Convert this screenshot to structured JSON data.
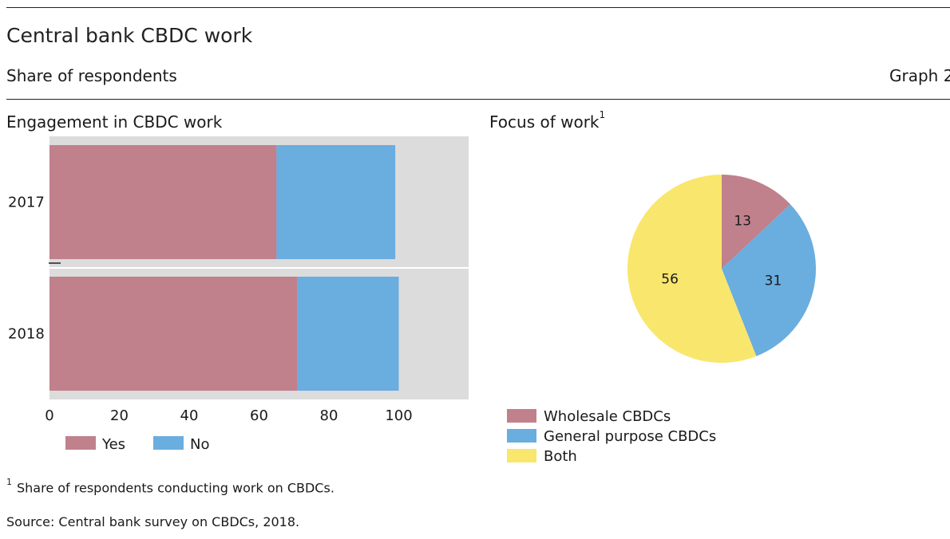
{
  "header": {
    "title": "Central bank CBDC work",
    "subtitle": "Share of respondents",
    "graph_label": "Graph 2"
  },
  "panels": {
    "left_title": "Engagement in CBDC work",
    "right_title": "Focus of work",
    "right_title_note": "1"
  },
  "footer": {
    "footnote_marker": "1",
    "footnote": "Share of respondents conducting work on CBDCs.",
    "source": "Source: Central bank survey on CBDCs, 2018."
  },
  "chart_data": [
    {
      "type": "bar",
      "orientation": "horizontal",
      "stacked": true,
      "title": "Engagement in CBDC work",
      "categories": [
        "2017",
        "2018"
      ],
      "series": [
        {
          "name": "Yes",
          "values": [
            65,
            71
          ],
          "color": "#c0808c"
        },
        {
          "name": "No",
          "values": [
            34,
            29
          ],
          "color": "#6aaddf"
        }
      ],
      "xlim": [
        0,
        120
      ],
      "xticks": [
        "0",
        "20",
        "40",
        "60",
        "80",
        "100"
      ],
      "grid": false,
      "background": "#dcdcdc",
      "legend_position": "bottom"
    },
    {
      "type": "pie",
      "title": "Focus of work",
      "slices": [
        {
          "name": "Wholesale CBDCs",
          "value": 13,
          "color": "#c0808c"
        },
        {
          "name": "General purpose CBDCs",
          "value": 31,
          "color": "#6aaddf"
        },
        {
          "name": "Both",
          "value": 56,
          "color": "#f9e66c"
        }
      ],
      "legend_position": "bottom-left"
    }
  ]
}
